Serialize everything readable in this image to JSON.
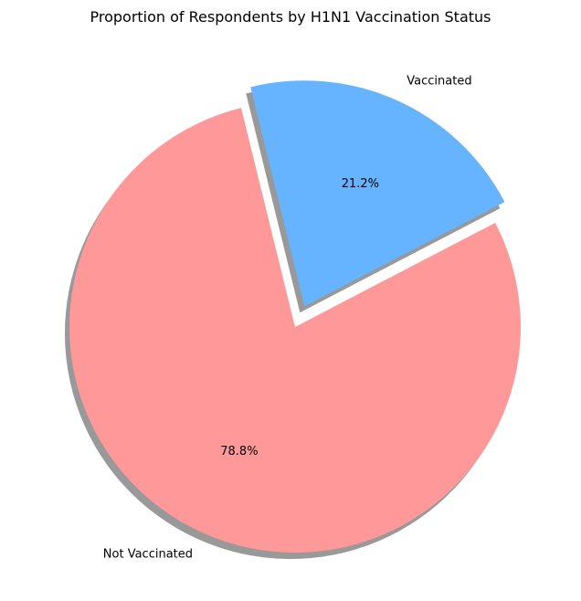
{
  "chart_data": {
    "type": "pie",
    "title": "Proportion of Respondents by H1N1 Vaccination Status",
    "slices": [
      {
        "label": "Not Vaccinated",
        "value": 78.8,
        "pct_label": "78.8%",
        "color": "#ff9999",
        "exploded": false
      },
      {
        "label": "Vaccinated",
        "value": 21.2,
        "pct_label": "21.2%",
        "color": "#66b3ff",
        "exploded": true
      }
    ],
    "shadow": true,
    "legend": "none"
  }
}
